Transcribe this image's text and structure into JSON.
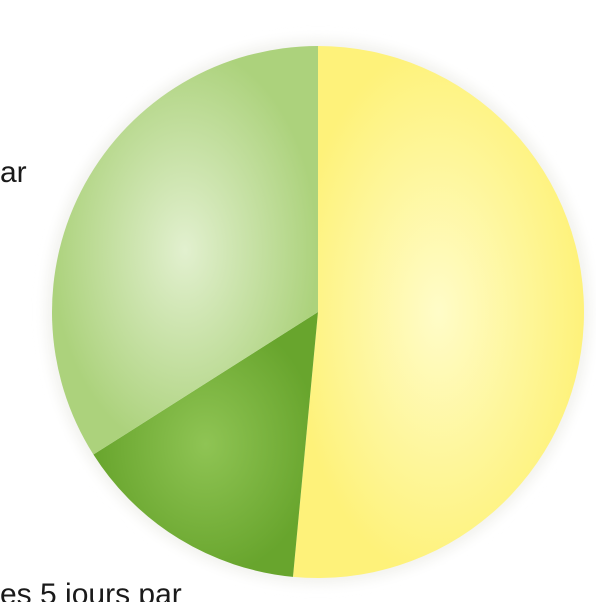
{
  "chart_data": {
    "type": "pie",
    "title": "",
    "slices": [
      {
        "label": "",
        "value": 51.5,
        "color": "#fef27a"
      },
      {
        "label": "",
        "value": 14.5,
        "color": "#78b53d"
      },
      {
        "label": "",
        "value": 34.0,
        "color": "#b5da88"
      }
    ],
    "start_angle_deg": 0,
    "direction": "clockwise",
    "annotations": {
      "top_partial_text": "ar",
      "bottom_partial_text": "es 5 jours par"
    }
  }
}
